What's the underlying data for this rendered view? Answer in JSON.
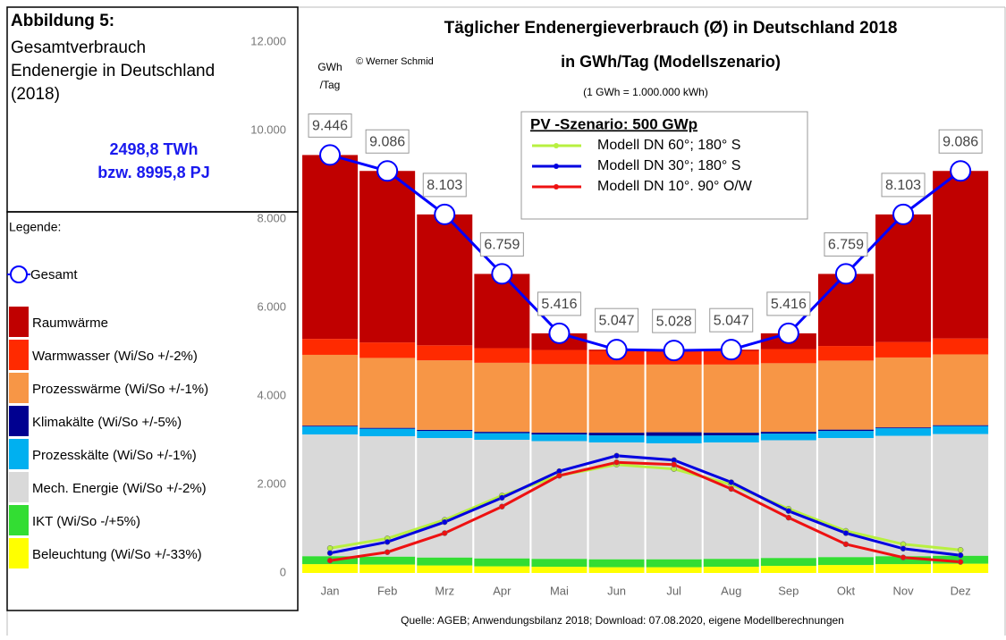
{
  "sidebar": {
    "figure_label": "Abbildung 5:",
    "description": [
      "Gesamtverbrauch",
      "Endenergie in Deutschland",
      "(2018)"
    ],
    "total_twh": "2498,8 TWh",
    "total_pj": "bzw. 8995,8 PJ",
    "legend_title": "Legende:"
  },
  "chart_data": {
    "type": "stacked_bar",
    "title": "Täglicher Endenergieverbrauch (Ø) in Deutschland 2018",
    "subtitle": "in GWh/Tag (Modellszenario)",
    "note": "(1 GWh = 1.000.000 kWh)",
    "copyright": "© Werner Schmid",
    "y_label": [
      "GWh",
      "/Tag"
    ],
    "source": "Quelle: AGEB; Anwendungsbilanz 2018; Download: 07.08.2020, eigene Modellberechnungen",
    "categories": [
      "Jan",
      "Feb",
      "Mrz",
      "Apr",
      "Mai",
      "Jun",
      "Jul",
      "Aug",
      "Sep",
      "Okt",
      "Nov",
      "Dez"
    ],
    "ylim": [
      0,
      12000
    ],
    "yticks": [
      0,
      {
        "value": 2000,
        "label": "2.000"
      },
      {
        "value": 4000,
        "label": "4.000"
      },
      {
        "value": 6000,
        "label": "6.000"
      },
      {
        "value": 8000,
        "label": "8.000"
      },
      {
        "value": 10000,
        "label": "10.000"
      },
      {
        "value": 12000,
        "label": "12.000"
      }
    ],
    "series": [
      {
        "name": "Beleuchtung (Wi/So  +/-33%)",
        "color": "#ffff00",
        "values": [
          200,
          190,
          170,
          150,
          140,
          130,
          130,
          140,
          160,
          180,
          200,
          210
        ]
      },
      {
        "name": "IKT (Wi/So  -/+5%)",
        "color": "#33dd33",
        "values": [
          180,
          180,
          180,
          180,
          180,
          180,
          180,
          180,
          180,
          180,
          180,
          180
        ]
      },
      {
        "name": "Mech. Energie (Wi/So  +/-2%)",
        "color": "#d9d9d9",
        "values": [
          2750,
          2720,
          2700,
          2680,
          2660,
          2640,
          2620,
          2630,
          2660,
          2690,
          2720,
          2750
        ]
      },
      {
        "name": "Prozesskälte (Wi/So  +/-1%)",
        "color": "#00b0f0",
        "values": [
          180,
          170,
          160,
          150,
          150,
          160,
          170,
          160,
          150,
          160,
          170,
          180
        ]
      },
      {
        "name": "Klimakälte (Wi/So  +/-5%)",
        "color": "#000090",
        "values": [
          20,
          20,
          25,
          30,
          40,
          60,
          80,
          60,
          40,
          30,
          20,
          20
        ]
      },
      {
        "name": "Prozesswärme (Wi/So  +/-1%)",
        "color": "#f79646",
        "values": [
          1600,
          1580,
          1570,
          1560,
          1550,
          1540,
          1530,
          1540,
          1550,
          1560,
          1580,
          1600
        ]
      },
      {
        "name": "Warmwasser (Wi/So  +/-2%)",
        "color": "#ff2a00",
        "values": [
          360,
          350,
          340,
          330,
          320,
          310,
          300,
          310,
          320,
          330,
          350,
          360
        ]
      },
      {
        "name": "Raumwärme",
        "color": "#c00000",
        "values": [
          4156,
          3876,
          2958,
          1679,
          376,
          27,
          18,
          27,
          356,
          1629,
          2883,
          3786
        ]
      }
    ],
    "gesamt": {
      "name": "Gesamt",
      "color": "#0000ff",
      "values": [
        9446,
        9086,
        8103,
        6759,
        5416,
        5047,
        5028,
        5047,
        5416,
        6759,
        8103,
        9086
      ],
      "value_labels": [
        "9.446",
        "9.086",
        "8.103",
        "6.759",
        "5.416",
        "5.047",
        "5.028",
        "5.047",
        "5.416",
        "6.759",
        "8.103",
        "9.086"
      ]
    },
    "pv_legend_title": "PV -Szenario:  500 GWp",
    "pv_lines": [
      {
        "name": "Modell DN 60°; 180° S",
        "color": "#b8f040",
        "values": [
          560,
          780,
          1200,
          1750,
          2200,
          2450,
          2350,
          2000,
          1450,
          950,
          650,
          520
        ]
      },
      {
        "name": "Modell DN 30°; 180° S",
        "color": "#0000e0",
        "values": [
          450,
          700,
          1150,
          1700,
          2300,
          2650,
          2550,
          2050,
          1400,
          900,
          550,
          400
        ]
      },
      {
        "name": "Modell DN 10°. 90° O/W",
        "color": "#ee1111",
        "values": [
          280,
          470,
          900,
          1500,
          2200,
          2500,
          2450,
          1900,
          1250,
          650,
          350,
          250
        ]
      }
    ]
  }
}
